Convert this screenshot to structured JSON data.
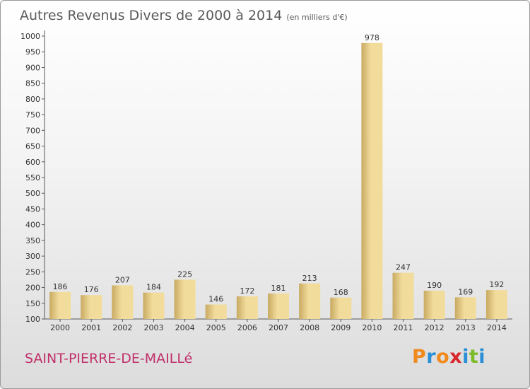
{
  "header": {
    "title": "Autres Revenus Divers de 2000 à 2014",
    "unit": "(en milliers d'€)"
  },
  "footer": {
    "commune": "SAINT-PIERRE-DE-MAILLé",
    "brand": "Proxiti"
  },
  "colors": {
    "bar_light": "#f2dc9c",
    "bar_dark": "#c8aa62",
    "commune_text": "#c0306a",
    "brand_letters": [
      "#f08a1c",
      "#2a8fd6",
      "#f08a1c",
      "#d8282e",
      "#2a8fd6",
      "#7cbb2a",
      "#2a8fd6"
    ]
  },
  "chart_data": {
    "type": "bar",
    "title": "Autres Revenus Divers de 2000 à 2014",
    "subtitle": "(en milliers d'€)",
    "categories": [
      "2000",
      "2001",
      "2002",
      "2003",
      "2004",
      "2005",
      "2006",
      "2007",
      "2008",
      "2009",
      "2010",
      "2011",
      "2012",
      "2013",
      "2014"
    ],
    "values": [
      186,
      176,
      207,
      184,
      225,
      146,
      172,
      181,
      213,
      168,
      978,
      247,
      190,
      169,
      192
    ],
    "ylim": [
      100,
      1000
    ],
    "yticks": [
      100,
      150,
      200,
      250,
      300,
      350,
      400,
      450,
      500,
      550,
      600,
      650,
      700,
      750,
      800,
      850,
      900,
      950,
      1000
    ],
    "grid": false,
    "xlabel": "",
    "ylabel": ""
  }
}
